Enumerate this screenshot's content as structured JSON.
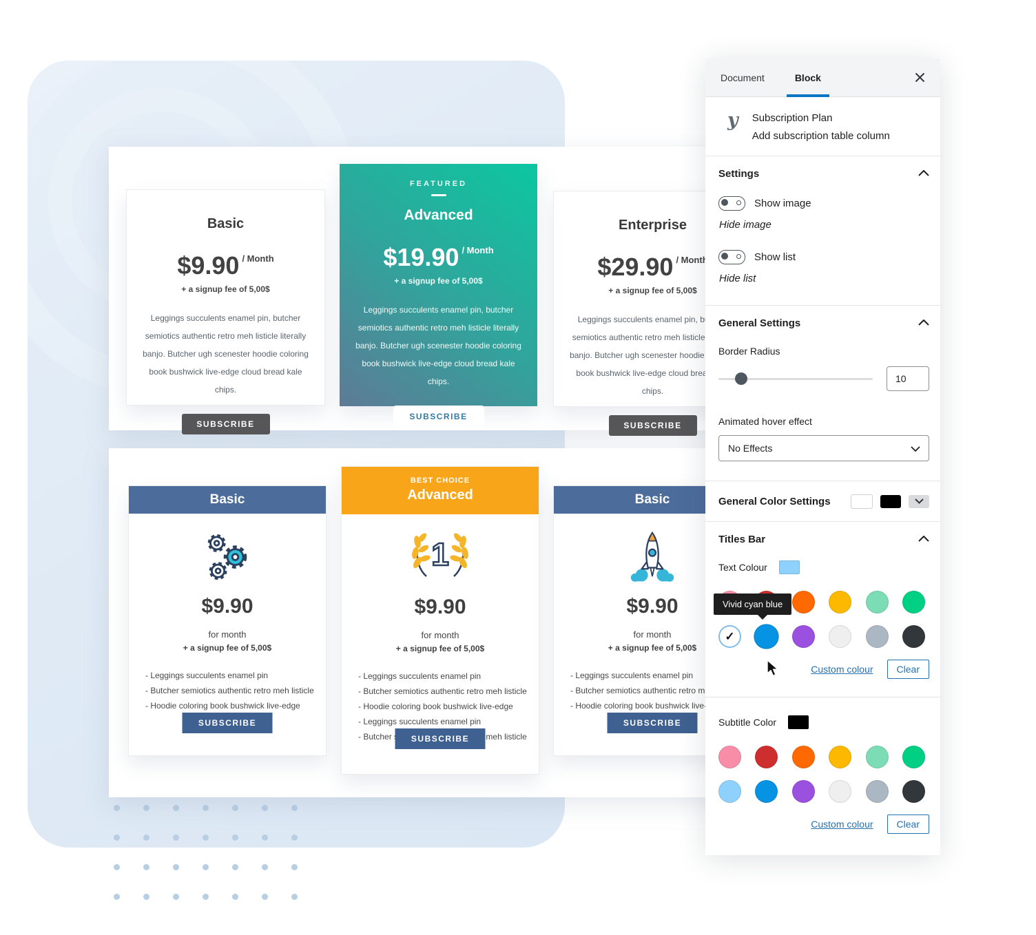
{
  "colors": {
    "accent_blue": "#0675c4",
    "link_blue": "#2271b1",
    "header_blue": "#4c6c9c",
    "header_orange": "#f9a51a",
    "featured_gradient": [
      "#5e7a96",
      "#0fc4a0"
    ],
    "subscribe_navy": "#3f6191",
    "subscribe_dark": "#565658",
    "text_colour_swatch": "#8ED1FC",
    "subtitle_colour_swatch": "#000000"
  },
  "palette": {
    "row1": [
      "#F78DA7",
      "#CF2E2E",
      "#FF6900",
      "#FCB900",
      "#7BDCB5",
      "#00D084"
    ],
    "row2": [
      "#8ED1FC",
      "#0693E3",
      "#9B51E0",
      "#EFEFF0",
      "#ABB8C3",
      "#32373C"
    ]
  },
  "pricing_top": {
    "cards": [
      {
        "title": "Basic",
        "price": "$9.90",
        "period": "/ Month",
        "signup": "+ a signup fee of 5,00$",
        "description": "Leggings succulents enamel pin, butcher semiotics authentic retro meh listicle literally banjo. Butcher ugh scenester hoodie coloring book bushwick live-edge cloud bread kale chips.",
        "button": "SUBSCRIBE"
      },
      {
        "badge": "FEATURED",
        "title": "Advanced",
        "price": "$19.90",
        "period": "/ Month",
        "signup": "+ a signup fee of 5,00$",
        "description": "Leggings succulents enamel pin, butcher semiotics authentic retro meh listicle literally banjo. Butcher ugh scenester hoodie coloring book bushwick live-edge cloud bread kale chips.",
        "button": "SUBSCRIBE"
      },
      {
        "title": "Enterprise",
        "price": "$29.90",
        "period": "/ Month",
        "signup": "+ a signup fee of 5,00$",
        "description": "Leggings succulents enamel pin, butcher semiotics authentic retro meh listicle literally banjo. Butcher ugh scenester hoodie coloring book bushwick live-edge cloud bread kale chips.",
        "button": "SUBSCRIBE"
      }
    ]
  },
  "pricing_bottom": {
    "cards": [
      {
        "title": "Basic",
        "icon": "gears-icon",
        "price": "$9.90",
        "per": "for month",
        "signup": "+ a signup fee of 5,00$",
        "features": [
          "- Leggings succulents enamel pin",
          "- Butcher semiotics authentic retro meh listicle",
          "- Hoodie coloring book bushwick live-edge"
        ],
        "button": "SUBSCRIBE"
      },
      {
        "badge": "BEST CHOICE",
        "title": "Advanced",
        "icon": "laurel-number-one-icon",
        "price": "$9.90",
        "per": "for month",
        "signup": "+ a signup fee of 5,00$",
        "features": [
          "- Leggings succulents enamel pin",
          "- Butcher semiotics authentic retro meh listicle",
          "- Hoodie coloring book bushwick live-edge",
          "- Leggings succulents enamel pin",
          "- Butcher semiotics authentic retro meh listicle"
        ],
        "button": "SUBSCRIBE"
      },
      {
        "title": "Basic",
        "icon": "rocket-icon",
        "price": "$9.90",
        "per": "for month",
        "signup": "+ a signup fee of 5,00$",
        "features": [
          "- Leggings succulents enamel pin",
          "- Butcher semiotics authentic retro meh listicle",
          "- Hoodie coloring book bushwick live-edge"
        ],
        "button": "SUBSCRIBE"
      }
    ]
  },
  "sidebar": {
    "tabs": {
      "document": "Document",
      "block": "Block"
    },
    "block_card": {
      "title": "Subscription Plan",
      "description": "Add subscription table column"
    },
    "settings": {
      "title": "Settings",
      "toggle_image_label": "Show image",
      "toggle_image_helper": "Hide image",
      "toggle_list_label": "Show list",
      "toggle_list_helper": "Hide list"
    },
    "general_settings": {
      "title": "General Settings",
      "border_radius_label": "Border Radius",
      "border_radius_value": "10",
      "hover_label": "Animated hover effect",
      "hover_value": "No Effects"
    },
    "general_color_settings": {
      "title": "General Color Settings"
    },
    "titles_bar": {
      "title": "Titles Bar",
      "text_colour_label": "Text Colour",
      "tooltip": "Vivid cyan blue",
      "custom_colour": "Custom colour",
      "clear": "Clear"
    },
    "subtitle_color": {
      "label": "Subtitle Color",
      "custom_colour": "Custom colour",
      "clear": "Clear"
    }
  }
}
